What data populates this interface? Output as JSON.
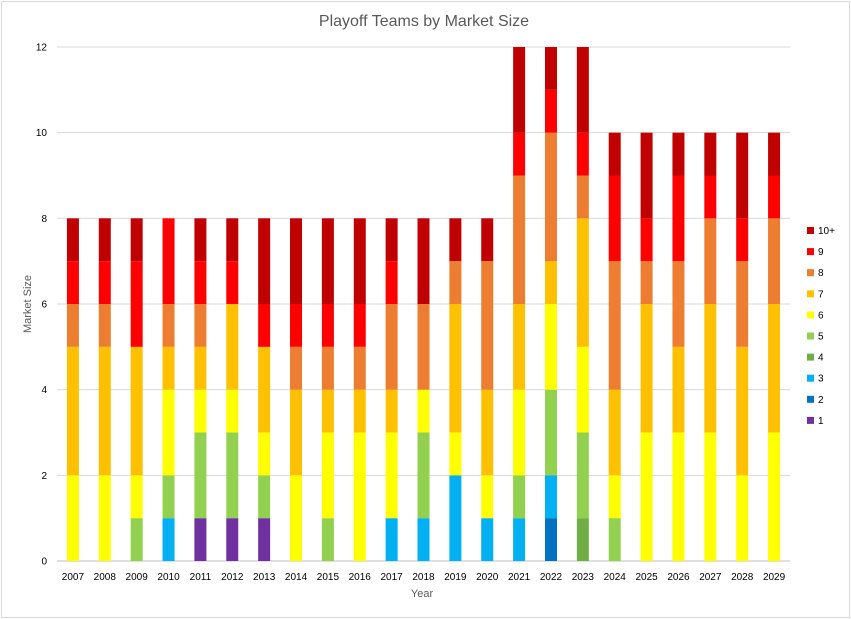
{
  "chart_data": {
    "type": "bar",
    "stacked": true,
    "title": "Playoff Teams by Market Size",
    "xlabel": "Year",
    "ylabel": "Market Size",
    "ylim": [
      0,
      12
    ],
    "yticks": [
      0,
      2,
      4,
      6,
      8,
      10,
      12
    ],
    "grid": true,
    "legend_position": "right",
    "categories": [
      "2007",
      "2008",
      "2009",
      "2010",
      "2011",
      "2012",
      "2013",
      "2014",
      "2015",
      "2016",
      "2017",
      "2018",
      "2019",
      "2020",
      "2021",
      "2022",
      "2023",
      "2024",
      "2025",
      "2026",
      "2027",
      "2028",
      "2029"
    ],
    "series": [
      {
        "name": "1",
        "color": "#7030a0",
        "values": [
          0,
          0,
          0,
          0,
          1,
          1,
          1,
          0,
          0,
          0,
          0,
          0,
          0,
          0,
          0,
          0,
          0,
          0,
          0,
          0,
          0,
          0,
          0
        ]
      },
      {
        "name": "2",
        "color": "#0070c0",
        "values": [
          0,
          0,
          0,
          0,
          0,
          0,
          0,
          0,
          0,
          0,
          0,
          0,
          0,
          0,
          0,
          1,
          0,
          0,
          0,
          0,
          0,
          0,
          0
        ]
      },
      {
        "name": "3",
        "color": "#00b0f0",
        "values": [
          0,
          0,
          0,
          1,
          0,
          0,
          0,
          0,
          0,
          0,
          1,
          1,
          2,
          1,
          1,
          1,
          0,
          0,
          0,
          0,
          0,
          0,
          0
        ]
      },
      {
        "name": "4",
        "color": "#70ad47",
        "values": [
          0,
          0,
          0,
          0,
          0,
          0,
          0,
          0,
          0,
          0,
          0,
          0,
          0,
          0,
          0,
          0,
          1,
          0,
          0,
          0,
          0,
          0,
          0
        ]
      },
      {
        "name": "5",
        "color": "#92d050",
        "values": [
          0,
          0,
          1,
          1,
          2,
          2,
          1,
          0,
          1,
          0,
          0,
          2,
          0,
          0,
          1,
          2,
          2,
          1,
          0,
          0,
          0,
          0,
          0
        ]
      },
      {
        "name": "6",
        "color": "#ffff00",
        "values": [
          2,
          2,
          1,
          2,
          1,
          1,
          1,
          2,
          2,
          3,
          2,
          1,
          1,
          1,
          2,
          2,
          2,
          1,
          3,
          3,
          3,
          2,
          3
        ]
      },
      {
        "name": "7",
        "color": "#ffc000",
        "values": [
          3,
          3,
          3,
          1,
          1,
          2,
          2,
          2,
          1,
          1,
          1,
          0,
          3,
          2,
          2,
          1,
          3,
          2,
          3,
          2,
          3,
          3,
          3
        ]
      },
      {
        "name": "8",
        "color": "#ed7d31",
        "values": [
          1,
          1,
          0,
          1,
          1,
          0,
          0,
          1,
          1,
          1,
          2,
          2,
          1,
          3,
          3,
          3,
          1,
          3,
          1,
          2,
          2,
          2,
          2
        ]
      },
      {
        "name": "9",
        "color": "#ff0000",
        "values": [
          1,
          1,
          2,
          2,
          1,
          1,
          1,
          1,
          1,
          1,
          1,
          0,
          0,
          0,
          1,
          1,
          1,
          2,
          1,
          2,
          1,
          1,
          1
        ]
      },
      {
        "name": "10+",
        "color": "#c00000",
        "values": [
          1,
          1,
          1,
          0,
          1,
          1,
          2,
          2,
          2,
          2,
          1,
          2,
          1,
          1,
          2,
          1,
          2,
          1,
          2,
          1,
          1,
          2,
          1
        ]
      }
    ]
  }
}
